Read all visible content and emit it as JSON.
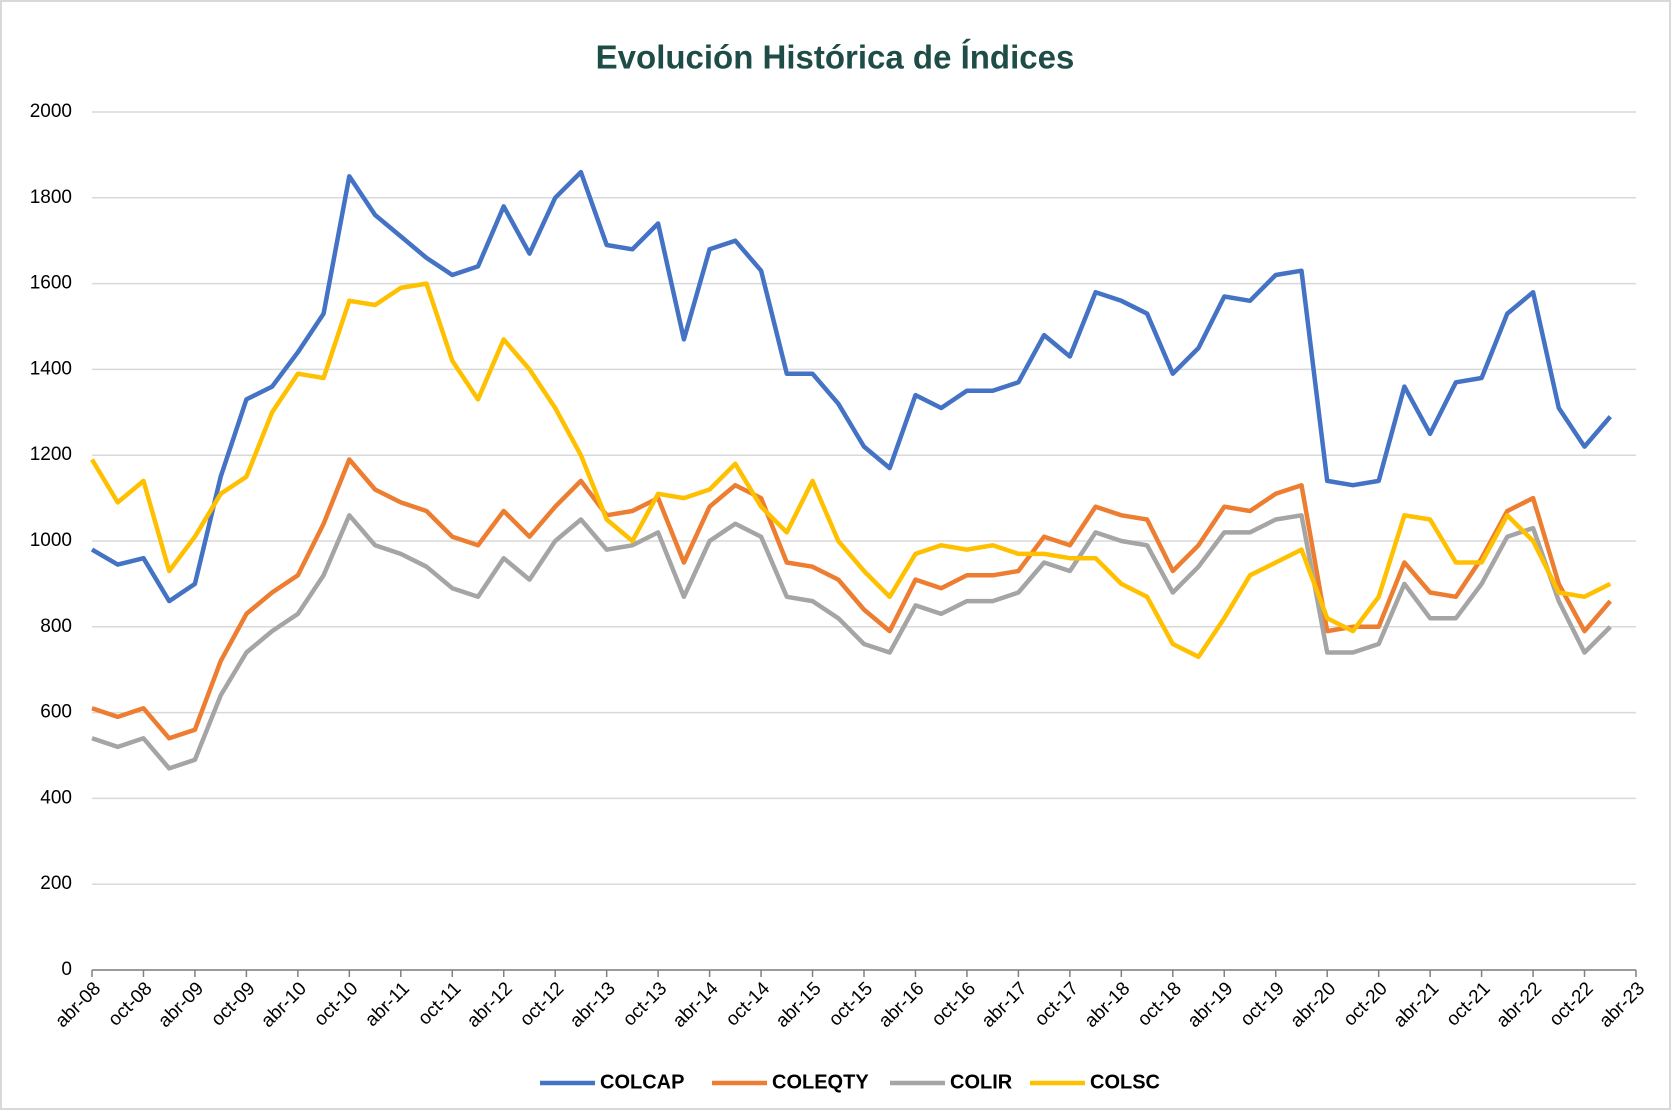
{
  "chart_data": {
    "type": "line",
    "title": "Evolución Histórica de Índices",
    "categories": [
      "abr-08",
      null,
      "oct-08",
      null,
      "abr-09",
      null,
      "oct-09",
      null,
      "abr-10",
      null,
      "oct-10",
      null,
      "abr-11",
      null,
      "oct-11",
      null,
      "abr-12",
      null,
      "oct-12",
      null,
      "abr-13",
      null,
      "oct-13",
      null,
      "abr-14",
      null,
      "oct-14",
      null,
      "abr-15",
      null,
      "oct-15",
      null,
      "abr-16",
      null,
      "oct-16",
      null,
      "abr-17",
      null,
      "oct-17",
      null,
      "abr-18",
      null,
      "oct-18",
      null,
      "abr-19",
      null,
      "oct-19",
      null,
      "abr-20",
      null,
      "oct-20",
      null,
      "abr-21",
      null,
      "oct-21",
      null,
      "abr-22",
      null,
      "oct-22",
      null,
      "abr-23"
    ],
    "series": [
      {
        "name": "COLCAP",
        "color": "#4472c4",
        "values": [
          980,
          945,
          960,
          860,
          900,
          1150,
          1330,
          1360,
          1440,
          1530,
          1850,
          1760,
          1710,
          1660,
          1620,
          1640,
          1780,
          1670,
          1800,
          1860,
          1690,
          1680,
          1740,
          1470,
          1680,
          1700,
          1630,
          1390,
          1390,
          1320,
          1220,
          1170,
          1340,
          1310,
          1350,
          1350,
          1370,
          1480,
          1430,
          1580,
          1560,
          1530,
          1390,
          1450,
          1570,
          1560,
          1620,
          1630,
          1140,
          1130,
          1140,
          1360,
          1250,
          1370,
          1380,
          1530,
          1580,
          1310,
          1220,
          1290,
          null
        ]
      },
      {
        "name": "COLEQTY",
        "color": "#ed7d31",
        "values": [
          610,
          590,
          610,
          540,
          560,
          720,
          830,
          880,
          920,
          1040,
          1190,
          1120,
          1090,
          1070,
          1010,
          990,
          1070,
          1010,
          1080,
          1140,
          1060,
          1070,
          1100,
          950,
          1080,
          1130,
          1100,
          950,
          940,
          910,
          840,
          790,
          910,
          890,
          920,
          920,
          930,
          1010,
          990,
          1080,
          1060,
          1050,
          930,
          990,
          1080,
          1070,
          1110,
          1130,
          790,
          800,
          800,
          950,
          880,
          870,
          960,
          1070,
          1100,
          900,
          790,
          860,
          null
        ]
      },
      {
        "name": "COLIR",
        "color": "#a5a5a5",
        "values": [
          540,
          520,
          540,
          470,
          490,
          640,
          740,
          790,
          830,
          920,
          1060,
          990,
          970,
          940,
          890,
          870,
          960,
          910,
          1000,
          1050,
          980,
          990,
          1020,
          870,
          1000,
          1040,
          1010,
          870,
          860,
          820,
          760,
          740,
          850,
          830,
          860,
          860,
          880,
          950,
          930,
          1020,
          1000,
          990,
          880,
          940,
          1020,
          1020,
          1050,
          1060,
          740,
          740,
          760,
          900,
          820,
          820,
          900,
          1010,
          1030,
          860,
          740,
          800,
          null
        ]
      },
      {
        "name": "COLSC",
        "color": "#ffc000",
        "values": [
          1190,
          1090,
          1140,
          930,
          1010,
          1110,
          1150,
          1300,
          1390,
          1380,
          1560,
          1550,
          1590,
          1600,
          1420,
          1330,
          1470,
          1400,
          1310,
          1200,
          1050,
          1000,
          1110,
          1100,
          1120,
          1180,
          1080,
          1020,
          1140,
          1000,
          930,
          870,
          970,
          990,
          980,
          990,
          970,
          970,
          960,
          960,
          900,
          870,
          760,
          730,
          820,
          920,
          950,
          980,
          820,
          790,
          870,
          1060,
          1050,
          950,
          950,
          1060,
          1000,
          880,
          870,
          900,
          null
        ]
      }
    ],
    "ylim": [
      0,
      2000
    ],
    "yticks": [
      0,
      200,
      400,
      600,
      800,
      1000,
      1200,
      1400,
      1600,
      1800,
      2000
    ],
    "grid": true,
    "legend": "bottom"
  }
}
